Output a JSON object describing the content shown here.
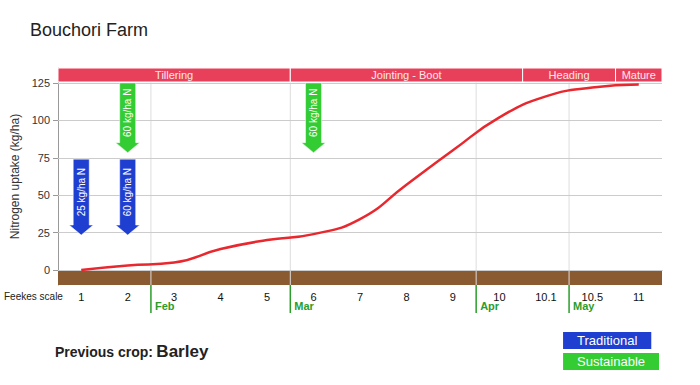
{
  "chart_data": {
    "type": "line",
    "title": "Bouchori Farm",
    "x_label": "Feekes scale",
    "y_label": "Nitrogen uptake (kg/ha)",
    "categories": [
      "1",
      "2",
      "3",
      "4",
      "5",
      "6",
      "7",
      "8",
      "9",
      "10",
      "10.1",
      "10.5",
      "11"
    ],
    "values": [
      0,
      3,
      5,
      14,
      20,
      24,
      34,
      57,
      80,
      102,
      116,
      122,
      124
    ],
    "color": "#e8282e",
    "ylim": [
      -10,
      135
    ],
    "yticks": [
      0,
      25,
      50,
      75,
      100,
      125
    ],
    "grid": true,
    "months": [
      null,
      null,
      "Feb",
      null,
      null,
      "Mar",
      null,
      null,
      null,
      "Apr",
      null,
      "May",
      null
    ],
    "stages": [
      {
        "label": "Tillering",
        "from": "1",
        "to": "5"
      },
      {
        "label": "Jointing - Boot",
        "from": "6",
        "to": "10"
      },
      {
        "label": "Heading",
        "from": "10.1",
        "to": "10.5"
      },
      {
        "label": "Mature",
        "from": "11",
        "to": "11"
      }
    ],
    "series": [
      {
        "name": "Traditional",
        "color": "#1f3fd1",
        "applications": [
          {
            "stage": "1",
            "label": "25 kg/ha N"
          },
          {
            "stage": "2",
            "label": "60 kg/ha N"
          }
        ]
      },
      {
        "name": "Sustainable",
        "color": "#33cc33",
        "applications": [
          {
            "stage": "2",
            "label": "60 kg/ha N"
          },
          {
            "stage": "6",
            "label": "60 kg/ha N"
          }
        ]
      }
    ],
    "legend": "lower right",
    "previous_crop": {
      "label": "Previous crop:",
      "value": "Barley"
    }
  }
}
